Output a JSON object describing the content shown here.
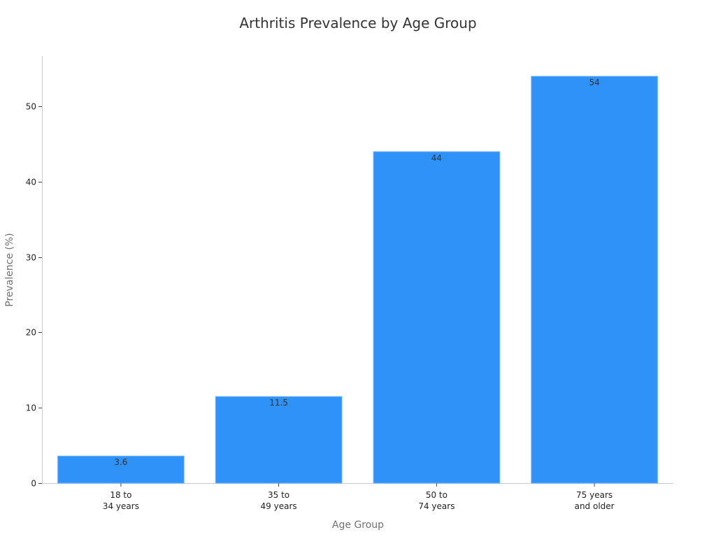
{
  "chart_data": {
    "type": "bar",
    "title": "Arthritis Prevalence by Age Group",
    "xlabel": "Age Group",
    "ylabel": "Prevalence (%)",
    "categories": [
      [
        "18 to",
        "34 years"
      ],
      [
        "35 to",
        "49 years"
      ],
      [
        "50 to",
        "74 years"
      ],
      [
        "75 years",
        "and older"
      ]
    ],
    "values": [
      3.6,
      11.5,
      44,
      54
    ],
    "data_labels": [
      "3.6",
      "11.5",
      "44",
      "54"
    ],
    "ylim": [
      0,
      56.7
    ],
    "yticks": [
      0,
      10,
      20,
      30,
      40,
      50
    ],
    "grid": false,
    "bar_color": "#2f92f8"
  }
}
